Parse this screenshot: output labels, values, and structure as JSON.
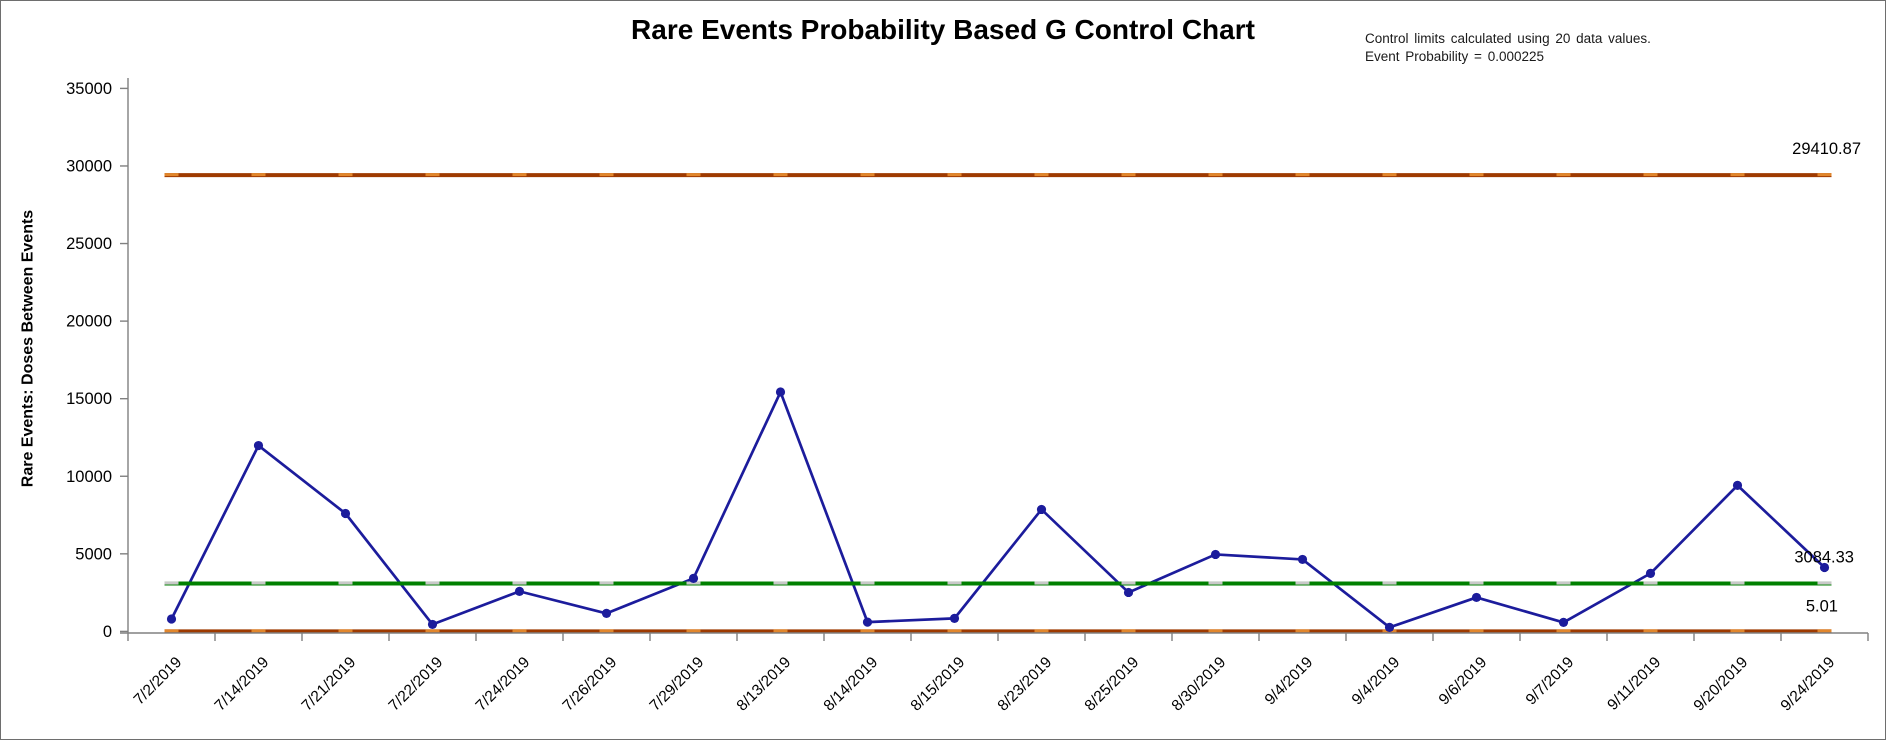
{
  "title": "Rare Events Probability Based G Control Chart",
  "annotation": {
    "line1": "Control limits calculated using 20 data values.",
    "line2": "Event Probability = 0.000225"
  },
  "chart_data": {
    "type": "line",
    "title": "Rare Events Probability Based G Control Chart",
    "xlabel": "",
    "ylabel": "Rare Events: Doses Between Events",
    "categories": [
      "7/2/2019",
      "7/14/2019",
      "7/21/2019",
      "7/22/2019",
      "7/24/2019",
      "7/26/2019",
      "7/29/2019",
      "8/13/2019",
      "8/14/2019",
      "8/15/2019",
      "8/23/2019",
      "8/25/2019",
      "8/30/2019",
      "9/4/2019",
      "9/4/2019",
      "9/6/2019",
      "9/7/2019",
      "9/11/2019",
      "9/20/2019",
      "9/24/2019"
    ],
    "series": [
      {
        "name": "Doses Between Events",
        "values": [
          800,
          11980,
          7600,
          450,
          2580,
          1160,
          3420,
          15430,
          600,
          840,
          7860,
          2510,
          4960,
          4640,
          260,
          2190,
          580,
          3740,
          9410,
          4120
        ]
      }
    ],
    "center_line": {
      "value": 3084.33,
      "label": "3084.33"
    },
    "upper_control_limit": {
      "value": 29410.87,
      "label": "29410.87"
    },
    "lower_control_limit": {
      "value": 5.01,
      "label": "5.01"
    },
    "ylim": [
      0,
      35000
    ],
    "yticks": [
      0,
      5000,
      10000,
      15000,
      20000,
      25000,
      30000,
      35000
    ],
    "ytick_labels": [
      "0",
      "5000",
      "10000",
      "15000",
      "20000",
      "25000",
      "30000",
      "35000"
    ],
    "grid": false,
    "legend": "none",
    "colors": {
      "series": "#1C1C9C",
      "center_line": "#008000",
      "center_line_dash": "#C9C9C9",
      "control_limit": "#9E3A00",
      "control_limit_dash": "#E1862C",
      "axis": "#808080",
      "text": "#000000"
    }
  }
}
